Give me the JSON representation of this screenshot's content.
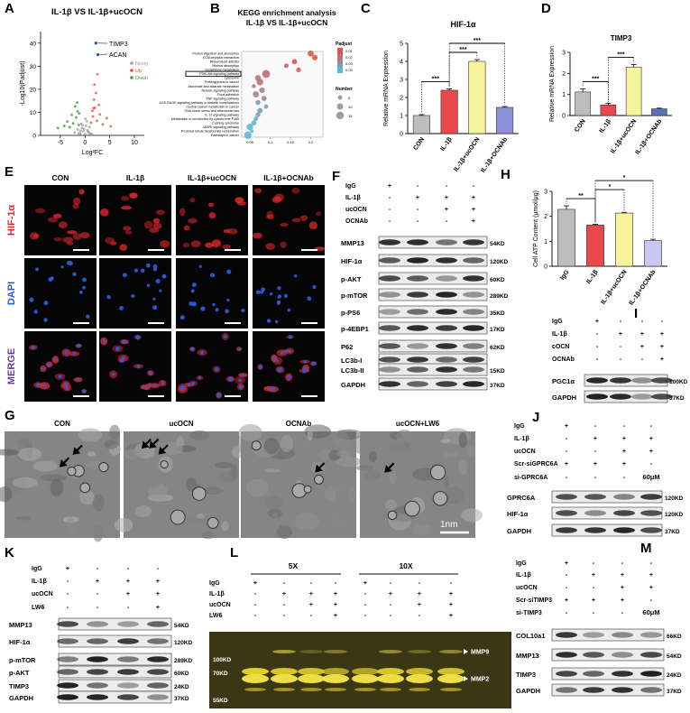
{
  "chart_data": [
    {
      "panel": "A",
      "type": "scatter",
      "title": "IL-1β VS IL-1β+ucOCN",
      "xlabel": "Log²FC",
      "ylabel": "-Log10(Padjust)",
      "xlim": [
        -9,
        12
      ],
      "ylim": [
        0,
        45
      ],
      "xticks": [
        -5,
        0,
        5,
        10
      ],
      "yticks": [
        0,
        10,
        20,
        30,
        40
      ],
      "series": [
        {
          "name": "Nosig",
          "color": "#9e9e9e",
          "x": [
            -2.1,
            -1.5,
            -1.0,
            -0.6,
            -0.3,
            0,
            0.2,
            0.5,
            0.8,
            1.1,
            -0.8,
            0.4,
            -0.2,
            0.9,
            -1.3,
            0.1,
            0.6,
            -0.5,
            1.4,
            -0.9
          ],
          "y": [
            1.2,
            2.5,
            0.8,
            3.1,
            1.9,
            0.5,
            4.2,
            2.2,
            1.1,
            0.7,
            5.0,
            6.1,
            2.8,
            3.6,
            0.9,
            7.2,
            1.5,
            4.4,
            0.6,
            2.0
          ]
        },
        {
          "name": "Up",
          "color": "#e8503a",
          "x": [
            1.2,
            1.6,
            2.0,
            2.4,
            1.8,
            3.0,
            2.2,
            1.5,
            3.6,
            4.4,
            2.8,
            1.9,
            5.2,
            2.5,
            1.7
          ],
          "y": [
            5.5,
            8.2,
            12.0,
            6.3,
            15.5,
            9.1,
            18.4,
            10.6,
            4.8,
            7.5,
            13.2,
            22.0,
            3.9,
            26.5,
            11.8
          ]
        },
        {
          "name": "Down",
          "color": "#2ca02c",
          "x": [
            -1.3,
            -1.8,
            -2.4,
            -3.1,
            -1.5,
            -2.0,
            -4.2,
            -2.7,
            -1.6,
            -3.6,
            -5.5,
            -1.2
          ],
          "y": [
            4.5,
            7.8,
            5.2,
            3.6,
            10.4,
            12.6,
            4.1,
            8.9,
            14.2,
            6.0,
            3.2,
            9.5
          ]
        }
      ],
      "annotations": [
        {
          "text": "TIMP3",
          "x": 2.2,
          "y": 40
        },
        {
          "text": "ACAN",
          "x": 2.6,
          "y": 35
        }
      ]
    },
    {
      "panel": "B",
      "type": "dot",
      "title": "KEGG enrichment analysis",
      "subtitle": "IL-1β VS IL-1β+ucOCN",
      "categories": [
        "Protein digestion and absorption",
        "ECM-receptor interaction",
        "Rheumatoid arthritis",
        "Mineral absorption",
        "Glutathione metabolism",
        "PI3K-Akt signaling pathway",
        "Lysosome",
        "Proteoglycans in cancer",
        "Ascorbate and aldarate metabolism",
        "Relaxin signaling pathway",
        "Focal adhesion",
        "TNF signaling pathway",
        "AGE-RAGE signaling pathway in diabetic complications",
        "Central carbon metabolism in cancer",
        "Fluid shear stress and atherosclerosis",
        "IL-17 signaling pathway",
        "Metabolism of xenobiotics by cytochrome P450",
        "Cushing syndrome",
        "MAPK signaling pathway",
        "Proximal tubule bicarbonate reclamation",
        "Pathways in cancer"
      ],
      "x": [
        0.2,
        0.21,
        0.16,
        0.14,
        0.17,
        0.09,
        0.07,
        0.075,
        0.06,
        0.08,
        0.065,
        0.085,
        0.07,
        0.09,
        0.075,
        0.07,
        0.065,
        0.06,
        0.05,
        0.055,
        0.045
      ],
      "sizes": [
        9,
        8,
        7,
        5,
        6,
        16,
        9,
        11,
        4,
        8,
        10,
        7,
        6,
        5,
        7,
        6,
        5,
        7,
        11,
        3,
        14
      ],
      "padjust": [
        0.008,
        0.006,
        0.01,
        0.012,
        0.015,
        0.018,
        0.02,
        0.02,
        0.022,
        0.025,
        0.026,
        0.028,
        0.03,
        0.032,
        0.033,
        0.035,
        0.036,
        0.038,
        0.04,
        0.042,
        0.044
      ],
      "xlim": [
        0.03,
        0.23
      ],
      "xticks": [
        0.05,
        0.1,
        0.15,
        0.2
      ],
      "highlight": "PI3K-Akt signaling pathway",
      "color_legend": {
        "title": "Padjust",
        "ticks": [
          0.01,
          0.02,
          0.03,
          0.04
        ],
        "colors": [
          "#e8504f",
          "#5bb8d6"
        ]
      },
      "size_legend": {
        "title": "Number",
        "ticks": [
          5,
          10,
          15
        ]
      }
    },
    {
      "panel": "C",
      "type": "bar",
      "title": "HIF-1α",
      "ylabel": "Relative mRNA Expression",
      "categories": [
        "CON",
        "IL-1β",
        "IL-1β+ucOCN",
        "IL-1β+OCNAb"
      ],
      "values": [
        1.0,
        2.4,
        4.0,
        1.45
      ],
      "errors": [
        0.05,
        0.08,
        0.1,
        0.05
      ],
      "colors": [
        "#bdbdbd",
        "#e8474c",
        "#f7f39a",
        "#8b8fd6"
      ],
      "ylim": [
        0,
        5
      ],
      "yticks": [
        0,
        1,
        2,
        3,
        4,
        5
      ],
      "significance": [
        {
          "groups": [
            "CON",
            "IL-1β"
          ],
          "label": "***"
        },
        {
          "groups": [
            "IL-1β",
            "IL-1β+ucOCN"
          ],
          "label": "***"
        },
        {
          "groups": [
            "IL-1β",
            "IL-1β+OCNAb"
          ],
          "label": "***"
        }
      ]
    },
    {
      "panel": "D",
      "type": "bar",
      "title": "TIMP3",
      "ylabel": "Relative mRNA Expression",
      "categories": [
        "CON",
        "IL-1β",
        "IL-1β+ucOCN",
        "IL-1β+OCNAb"
      ],
      "values": [
        1.12,
        0.5,
        2.3,
        0.32
      ],
      "errors": [
        0.15,
        0.08,
        0.12,
        0.03
      ],
      "colors": [
        "#bdbdbd",
        "#e8474c",
        "#f7f39a",
        "#5b6fb5"
      ],
      "ylim": [
        0,
        3
      ],
      "yticks": [
        0,
        1,
        2,
        3
      ],
      "significance": [
        {
          "groups": [
            "CON",
            "IL-1β"
          ],
          "label": "***"
        },
        {
          "groups": [
            "IL-1β",
            "IL-1β+ucOCN"
          ],
          "label": "***"
        }
      ]
    },
    {
      "panel": "H",
      "type": "bar",
      "ylabel": "Cell ATP Content (μmol/μg)",
      "categories": [
        "IgG",
        "IL-1β",
        "IL-1β+ucOCN",
        "IL-1β+OCNAb"
      ],
      "values": [
        2.28,
        1.65,
        2.13,
        1.03
      ],
      "errors": [
        0.14,
        0.03,
        0.03,
        0.05
      ],
      "colors": [
        "#bdbdbd",
        "#e8474c",
        "#f7f39a",
        "#c9c7f0"
      ],
      "ylim": [
        0,
        3
      ],
      "yticks": [
        0,
        1,
        2,
        3
      ],
      "significance": [
        {
          "groups": [
            "IgG",
            "IL-1β"
          ],
          "label": "**"
        },
        {
          "groups": [
            "IL-1β",
            "IL-1β+ucOCN"
          ],
          "label": "*"
        },
        {
          "groups": [
            "IL-1β",
            "IL-1β+OCNAb"
          ],
          "label": "*"
        }
      ]
    }
  ],
  "images": [
    {
      "panel": "E",
      "columns": [
        "CON",
        "IL-1β",
        "IL-1β+ucOCN",
        "IL-1β+OCNAb"
      ],
      "rows": [
        {
          "name": "HIF-1α",
          "color": "#e0262b"
        },
        {
          "name": "DAPI",
          "color": "#2a5bd7"
        },
        {
          "name": "MERGE",
          "color": "#6a3d9a"
        }
      ]
    },
    {
      "panel": "G",
      "columns": [
        "CON",
        "ucOCN",
        "OCNAb",
        "ucOCN+LW6"
      ],
      "scale_bar": "1nm"
    }
  ],
  "blots": [
    {
      "panel": "F",
      "conditions": [
        {
          "name": "IgG",
          "signs": [
            "+",
            "-",
            "-",
            "-"
          ]
        },
        {
          "name": "IL-1β",
          "signs": [
            "-",
            "+",
            "+",
            "+"
          ]
        },
        {
          "name": "ucOCN",
          "signs": [
            "-",
            "-",
            "+",
            "+"
          ]
        },
        {
          "name": "OCNAb",
          "signs": [
            "-",
            "-",
            "-",
            "+"
          ]
        }
      ],
      "bands": [
        {
          "name": "MMP13",
          "kd": "54KD"
        },
        {
          "name": "HIF-1α",
          "kd": "120KD"
        },
        {
          "name": "p-AKT",
          "kd": "60KD"
        },
        {
          "name": "p-mTOR",
          "kd": "289KD"
        },
        {
          "name": "p-PS6",
          "kd": "35KD"
        },
        {
          "name": "p-4EBP1",
          "kd": "17KD"
        },
        {
          "name": "P62",
          "kd": "62KD"
        },
        {
          "name": "LC3b-I"
        },
        {
          "name": "LC3b-II",
          "kd": "15KD"
        },
        {
          "name": "GAPDH",
          "kd": "37KD"
        }
      ]
    },
    {
      "panel": "I",
      "conditions": [
        {
          "name": "IgG",
          "signs": [
            "+",
            "-",
            "-",
            "-"
          ]
        },
        {
          "name": "IL-1β",
          "signs": [
            "-",
            "+",
            "+",
            "+"
          ]
        },
        {
          "name": "cOCN",
          "signs": [
            "-",
            "-",
            "+",
            "+"
          ]
        },
        {
          "name": "OCNAb",
          "signs": [
            "-",
            "-",
            "-",
            "+"
          ]
        }
      ],
      "bands": [
        {
          "name": "PGC1α",
          "kd": "100KD"
        },
        {
          "name": "GAPDH",
          "kd": "37KD"
        }
      ]
    },
    {
      "panel": "J",
      "conditions": [
        {
          "name": "IgG",
          "signs": [
            "+",
            "-",
            "-",
            "-"
          ]
        },
        {
          "name": "IL-1β",
          "signs": [
            "-",
            "+",
            "+",
            "+"
          ]
        },
        {
          "name": "ucOCN",
          "signs": [
            "-",
            "-",
            "+",
            "+"
          ]
        },
        {
          "name": "Scr-siGPRC6A",
          "signs": [
            "+",
            "+",
            "+",
            "-"
          ]
        },
        {
          "name": "si-GPRC6A",
          "signs": [
            "-",
            "-",
            "-",
            "60μM"
          ]
        }
      ],
      "bands": [
        {
          "name": "GPRC6A",
          "kd": "120KD"
        },
        {
          "name": "HIF-1α",
          "kd": "120KD"
        },
        {
          "name": "GAPDH",
          "kd": "37KD"
        }
      ]
    },
    {
      "panel": "K",
      "conditions": [
        {
          "name": "IgG",
          "signs": [
            "+",
            "-",
            "-",
            "-"
          ]
        },
        {
          "name": "IL-1β",
          "signs": [
            "-",
            "+",
            "+",
            "+"
          ]
        },
        {
          "name": "ucOCN",
          "signs": [
            "-",
            "-",
            "+",
            "+"
          ]
        },
        {
          "name": "LW6",
          "signs": [
            "-",
            "-",
            "-",
            "+"
          ]
        }
      ],
      "bands": [
        {
          "name": "MMP13",
          "kd": "54KD"
        },
        {
          "name": "HIF-1α",
          "kd": "120KD"
        },
        {
          "name": "p-mTOR",
          "kd": "289KD"
        },
        {
          "name": "p-AKT",
          "kd": "60KD"
        },
        {
          "name": "TIMP3",
          "kd": "24KD"
        },
        {
          "name": "GAPDH",
          "kd": "37KD"
        }
      ]
    },
    {
      "panel": "M",
      "conditions": [
        {
          "name": "IgG",
          "signs": [
            "+",
            "-",
            "-",
            "-"
          ]
        },
        {
          "name": "IL-1β",
          "signs": [
            "-",
            "+",
            "+",
            "+"
          ]
        },
        {
          "name": "ucOCN",
          "signs": [
            "-",
            "-",
            "+",
            "+"
          ]
        },
        {
          "name": "Scr-siTIMP3",
          "signs": [
            "+",
            "+",
            "+",
            "-"
          ]
        },
        {
          "name": "si-TIMP3",
          "signs": [
            "-",
            "-",
            "-",
            "60μM"
          ]
        }
      ],
      "bands": [
        {
          "name": "COL10a1",
          "kd": "66KD"
        },
        {
          "name": "MMP13",
          "kd": "54KD"
        },
        {
          "name": "TIMP3",
          "kd": "24KD"
        },
        {
          "name": "GAPDH",
          "kd": "37KD"
        }
      ]
    }
  ],
  "zymogram": {
    "panel": "L",
    "magnifications": [
      "5X",
      "10X"
    ],
    "conditions": [
      {
        "name": "IgG",
        "signs": [
          "+",
          "-",
          "-",
          "-",
          "+",
          "-",
          "-",
          "-"
        ]
      },
      {
        "name": "IL-1β",
        "signs": [
          "-",
          "+",
          "+",
          "+",
          "-",
          "+",
          "+",
          "+"
        ]
      },
      {
        "name": "ucOCN",
        "signs": [
          "-",
          "-",
          "+",
          "+",
          "-",
          "-",
          "+",
          "+"
        ]
      },
      {
        "name": "LW6",
        "signs": [
          "-",
          "-",
          "-",
          "+",
          "-",
          "-",
          "-",
          "+"
        ]
      }
    ],
    "markers": [
      "100KD",
      "70KD",
      "55KD"
    ],
    "bands": [
      "MMP9",
      "MMP2"
    ]
  }
}
